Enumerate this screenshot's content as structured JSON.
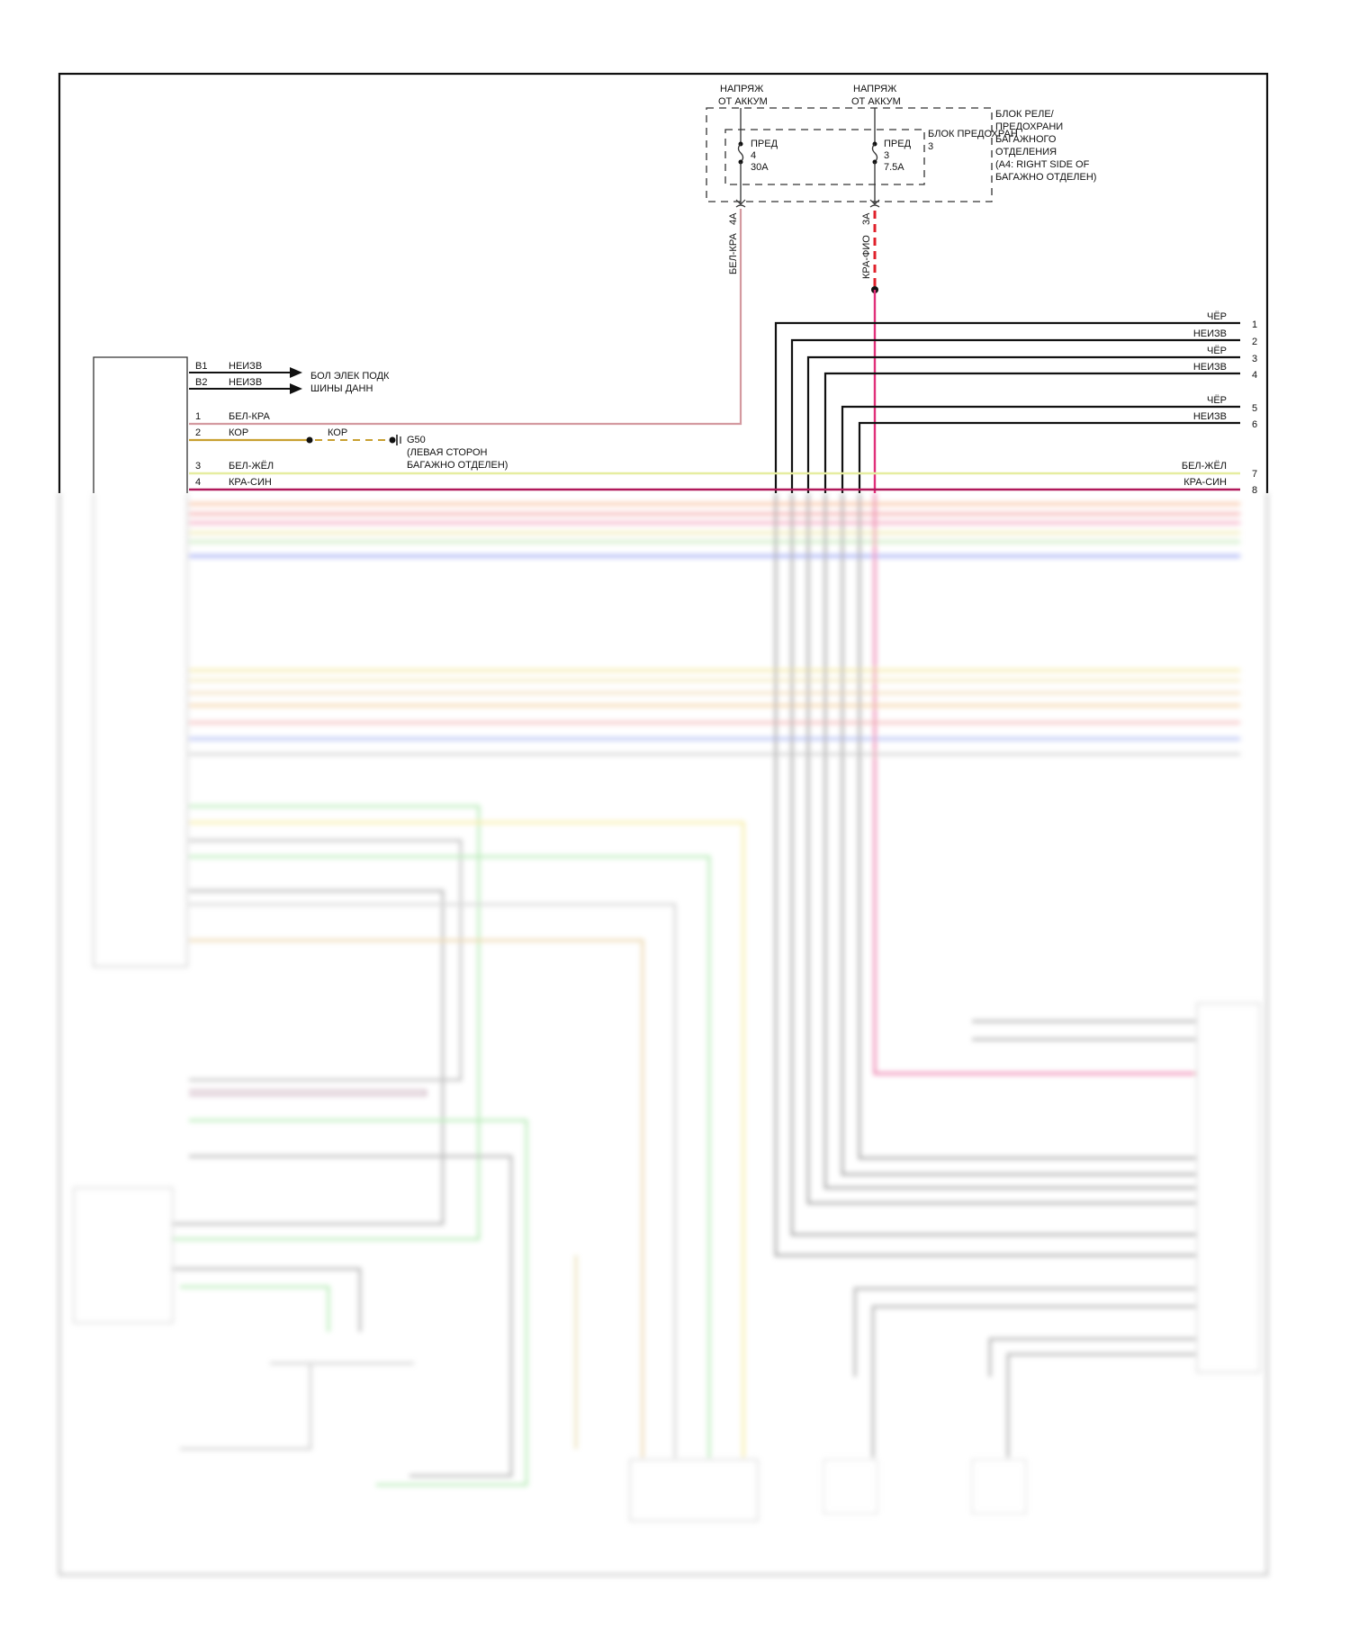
{
  "battery_feeds": [
    {
      "line1": "НАПРЯЖ",
      "line2": "ОТ АККУМ"
    },
    {
      "line1": "НАПРЯЖ",
      "line2": "ОТ АККУМ"
    }
  ],
  "fuses": [
    {
      "label": "ПРЕД",
      "number": "4",
      "rating": "30A",
      "connector": "4A",
      "wire": "БЕЛ-КРА"
    },
    {
      "label": "ПРЕД",
      "number": "3",
      "rating": "7.5A",
      "connector": "3A",
      "wire": "КРА-ФИО"
    }
  ],
  "fuse_block": {
    "line1": "БЛОК ПРЕДОХРАН",
    "line2": "3"
  },
  "relay_block": {
    "lines": [
      "БЛОК РЕЛЕ/",
      "ПРЕДОХРАНИ",
      "БАГАЖНОГО",
      "ОТДЕЛЕНИЯ",
      "(A4: RIGHT SIDE OF",
      "БАГАЖНО ОТДЕЛЕН)"
    ]
  },
  "left_pins": [
    {
      "pin": "B1",
      "wire": "НЕИЗВ"
    },
    {
      "pin": "B2",
      "wire": "НЕИЗВ"
    },
    {
      "pin": "1",
      "wire": "БЕЛ-КРА"
    },
    {
      "pin": "2",
      "wire": "КОР"
    },
    {
      "pin": "3",
      "wire": "БЕЛ-ЖЁЛ"
    },
    {
      "pin": "4",
      "wire": "КРА-СИН"
    }
  ],
  "data_bus": {
    "line1": "БОЛ ЭЛЕК ПОДК",
    "line2": "ШИНЫ ДАНН"
  },
  "ground": {
    "wire": "КОР",
    "id": "G50",
    "line1": "(ЛЕВАЯ СТОРОН",
    "line2": "БАГАЖНО ОТДЕЛЕН)"
  },
  "right_pins": [
    {
      "pin": "1",
      "wire": "ЧЁР"
    },
    {
      "pin": "2",
      "wire": "НЕИЗВ"
    },
    {
      "pin": "3",
      "wire": "ЧЁР"
    },
    {
      "pin": "4",
      "wire": "НЕИЗВ"
    },
    {
      "pin": "5",
      "wire": "ЧЁР"
    },
    {
      "pin": "6",
      "wire": "НЕИЗВ"
    },
    {
      "pin": "7",
      "wire": "БЕЛ-ЖЁЛ"
    },
    {
      "pin": "8",
      "wire": "КРА-СИН"
    }
  ],
  "colors": {
    "bel_kra": "#d49aa0",
    "kra_fio": "#e0202a",
    "kra_sin": "#b0185a",
    "bel_zhel": "#e6eda0",
    "kor": "#c8a030",
    "magenta": "#e0307a"
  }
}
